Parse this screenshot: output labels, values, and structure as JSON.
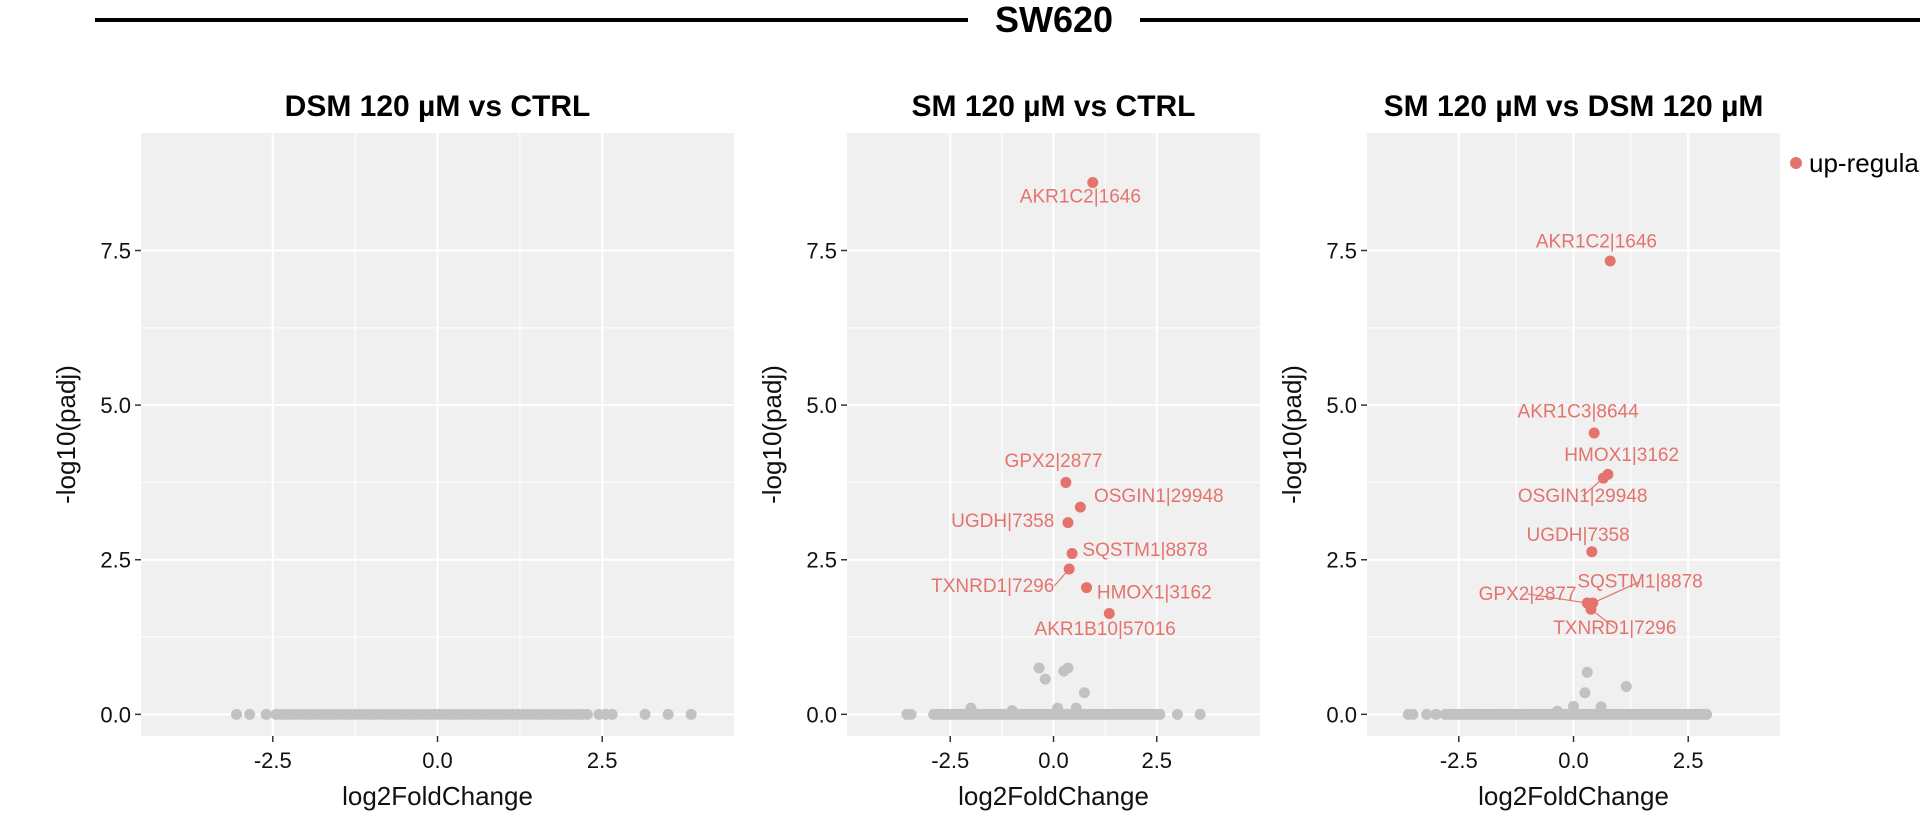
{
  "figure": {
    "title": "SW620",
    "legend_label": "up-regula",
    "colors": {
      "up": "#e5736d",
      "ns": "#c2c2c2",
      "panel_bg": "#f0f0f0",
      "grid": "#ffffff"
    }
  },
  "chart_data": [
    {
      "type": "scatter",
      "title": "DSM 120 µM vs CTRL",
      "xlabel": "log2FoldChange",
      "ylabel": "-log10(padj)",
      "xlim": [
        -4.5,
        4.5
      ],
      "ylim": [
        -0.35,
        9.4
      ],
      "xticks": [
        -2.5,
        0.0,
        2.5
      ],
      "yticks": [
        0.0,
        2.5,
        5.0,
        7.5
      ],
      "xtick_labels": [
        "-2.5",
        "0.0",
        "2.5"
      ],
      "ytick_labels": [
        "0.0",
        "2.5",
        "5.0",
        "7.5"
      ],
      "ns_range": [
        -2.45,
        2.3
      ],
      "ns_points": [
        [
          -3.05,
          0
        ],
        [
          -2.85,
          0
        ],
        [
          -2.6,
          0
        ],
        [
          2.45,
          0
        ],
        [
          2.55,
          0
        ],
        [
          2.65,
          0
        ],
        [
          3.15,
          0
        ],
        [
          3.5,
          0
        ],
        [
          3.85,
          0
        ]
      ],
      "labeled_points": []
    },
    {
      "type": "scatter",
      "title": "SM 120 µM vs CTRL",
      "xlabel": "log2FoldChange",
      "ylabel": "-log10(padj)",
      "xlim": [
        -5.0,
        5.0
      ],
      "ylim": [
        -0.35,
        9.4
      ],
      "xticks": [
        -2.5,
        0.0,
        2.5
      ],
      "yticks": [
        0.0,
        2.5,
        5.0,
        7.5
      ],
      "xtick_labels": [
        "-2.5",
        "0.0",
        "2.5"
      ],
      "ytick_labels": [
        "0.0",
        "2.5",
        "5.0",
        "7.5"
      ],
      "ns_range": [
        -2.9,
        2.6
      ],
      "ns_points": [
        [
          -3.55,
          0
        ],
        [
          -3.45,
          0
        ],
        [
          3.0,
          0
        ],
        [
          3.55,
          0
        ],
        [
          -0.35,
          0.75
        ],
        [
          -0.2,
          0.57
        ],
        [
          0.25,
          0.7
        ],
        [
          0.35,
          0.75
        ],
        [
          0.75,
          0.35
        ],
        [
          -2.0,
          0.1
        ],
        [
          0.1,
          0.1
        ],
        [
          0.55,
          0.1
        ],
        [
          -1.0,
          0.06
        ]
      ],
      "labeled_points": [
        {
          "label": "AKR1C2|1646",
          "x": 0.95,
          "y": 8.6,
          "lx": 0.65,
          "ly": 8.28,
          "anchor": "middle"
        },
        {
          "label": "GPX2|2877",
          "x": 0.3,
          "y": 3.75,
          "lx": 0.0,
          "ly": 4.0,
          "anchor": "middle"
        },
        {
          "label": "OSGIN1|29948",
          "x": 0.65,
          "y": 3.35,
          "lx": 0.98,
          "ly": 3.43,
          "anchor": "start"
        },
        {
          "label": "UGDH|7358",
          "x": 0.35,
          "y": 3.1,
          "lx": 0.02,
          "ly": 3.03,
          "anchor": "end"
        },
        {
          "label": "SQSTM1|8878",
          "x": 0.45,
          "y": 2.6,
          "lx": 0.7,
          "ly": 2.56,
          "anchor": "start"
        },
        {
          "label": "TXNRD1|7296",
          "x": 0.38,
          "y": 2.35,
          "lx": 0.02,
          "ly": 1.98,
          "anchor": "end"
        },
        {
          "label": "HMOX1|3162",
          "x": 0.8,
          "y": 2.05,
          "lx": 1.05,
          "ly": 1.87,
          "anchor": "start"
        },
        {
          "label": "AKR1B10|57016",
          "x": 1.35,
          "y": 1.63,
          "lx": 1.25,
          "ly": 1.28,
          "anchor": "middle"
        }
      ]
    },
    {
      "type": "scatter",
      "title": "SM 120 µM vs DSM 120 µM",
      "xlabel": "log2FoldChange",
      "ylabel": "-log10(padj)",
      "xlim": [
        -4.5,
        4.5
      ],
      "ylim": [
        -0.35,
        9.4
      ],
      "xticks": [
        -2.5,
        0.0,
        2.5
      ],
      "yticks": [
        0.0,
        2.5,
        5.0,
        7.5
      ],
      "xtick_labels": [
        "-2.5",
        "0.0",
        "2.5"
      ],
      "ytick_labels": [
        "0.0",
        "2.5",
        "5.0",
        "7.5"
      ],
      "ns_range": [
        -2.8,
        2.85
      ],
      "ns_points": [
        [
          -3.6,
          0
        ],
        [
          -3.5,
          0
        ],
        [
          -3.2,
          0
        ],
        [
          -3.0,
          0
        ],
        [
          0.3,
          0.68
        ],
        [
          0.25,
          0.35
        ],
        [
          1.15,
          0.45
        ],
        [
          0.0,
          0.13
        ],
        [
          0.6,
          0.12
        ],
        [
          -0.35,
          0.05
        ],
        [
          2.9,
          0
        ]
      ],
      "labeled_points": [
        {
          "label": "AKR1C2|1646",
          "x": 0.8,
          "y": 7.33,
          "lx": 0.5,
          "ly": 7.55,
          "anchor": "middle"
        },
        {
          "label": "AKR1C3|8644",
          "x": 0.45,
          "y": 4.55,
          "lx": 0.1,
          "ly": 4.8,
          "anchor": "middle"
        },
        {
          "label": "HMOX1|3162",
          "x": 0.75,
          "y": 3.88,
          "lx": 1.05,
          "ly": 4.1,
          "anchor": "middle"
        },
        {
          "label": "OSGIN1|29948",
          "x": 0.65,
          "y": 3.82,
          "lx": 0.2,
          "ly": 3.43,
          "anchor": "middle"
        },
        {
          "label": "UGDH|7358",
          "x": 0.4,
          "y": 2.63,
          "lx": 0.1,
          "ly": 2.8,
          "anchor": "middle"
        },
        {
          "label": "SQSTM1|8878",
          "x": 0.42,
          "y": 1.8,
          "lx": 1.45,
          "ly": 2.05,
          "anchor": "middle"
        },
        {
          "label": "GPX2|2877",
          "x": 0.3,
          "y": 1.8,
          "lx": -1.0,
          "ly": 1.85,
          "anchor": "middle"
        },
        {
          "label": "TXNRD1|7296",
          "x": 0.38,
          "y": 1.7,
          "lx": 0.9,
          "ly": 1.3,
          "anchor": "middle"
        }
      ]
    }
  ]
}
